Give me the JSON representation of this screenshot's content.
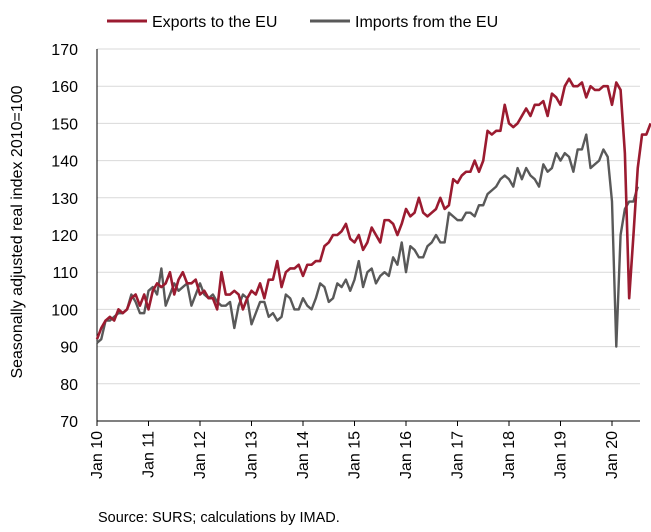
{
  "chart_data": {
    "type": "line",
    "ylabel": "Seasonally adjusted real index 2010=100",
    "ylim": [
      70,
      170
    ],
    "yticks": [
      70,
      80,
      90,
      100,
      110,
      120,
      130,
      140,
      150,
      160,
      170
    ],
    "xlabels": [
      "Jan 10",
      "Jan 11",
      "Jan 12",
      "Jan 13",
      "Jan 14",
      "Jan 15",
      "Jan 16",
      "Jan 17",
      "Jan 18",
      "Jan 19",
      "Jan 20"
    ],
    "grid": "horizontal",
    "legend_position": "top",
    "source": "Source: SURS; calculations by IMAD.",
    "series": [
      {
        "name": "Exports to the EU",
        "color": "#9B1B30",
        "values": [
          92,
          95,
          97,
          98,
          97,
          100,
          99,
          100,
          103,
          104,
          101,
          104,
          100,
          105,
          107,
          106,
          107,
          110,
          104,
          108,
          110,
          107,
          107,
          108,
          104,
          105,
          103,
          103,
          100,
          110,
          104,
          104,
          105,
          104,
          100,
          103,
          105,
          104,
          107,
          103,
          108,
          108,
          113,
          106,
          110,
          111,
          111,
          112,
          109,
          112,
          112,
          113,
          113,
          117,
          118,
          120,
          120,
          121,
          123,
          119,
          118,
          120,
          116,
          118,
          122,
          120,
          118,
          124,
          124,
          123,
          120,
          123,
          127,
          125,
          126,
          130,
          126,
          125,
          126,
          127,
          130,
          127,
          128,
          135,
          134,
          136,
          137,
          137,
          140,
          137,
          140,
          148,
          147,
          148,
          148,
          155,
          150,
          149,
          150,
          152,
          154,
          152,
          155,
          155,
          156,
          152,
          158,
          157,
          155,
          160,
          162,
          160,
          160,
          161,
          157,
          160,
          159,
          159,
          160,
          160,
          155,
          161,
          159,
          142,
          103,
          120,
          138,
          147,
          147,
          150
        ],
        "start_year": 2010,
        "start_month": 1
      },
      {
        "name": "Imports from the EU",
        "color": "#595959",
        "values": [
          91,
          92,
          97,
          97,
          98,
          99,
          99,
          100,
          104,
          102,
          99,
          99,
          105,
          106,
          104,
          111,
          101,
          104,
          107,
          105,
          106,
          107,
          101,
          104,
          107,
          104,
          103,
          104,
          102,
          101,
          101,
          102,
          95,
          101,
          104,
          103,
          96,
          99,
          102,
          102,
          98,
          99,
          97,
          98,
          104,
          103,
          100,
          100,
          103,
          101,
          100,
          103,
          107,
          106,
          102,
          103,
          107,
          106,
          108,
          105,
          108,
          113,
          106,
          110,
          111,
          107,
          109,
          110,
          109,
          114,
          112,
          118,
          110,
          117,
          116,
          114,
          114,
          117,
          118,
          120,
          118,
          118,
          126,
          125,
          124,
          124,
          126,
          126,
          125,
          128,
          128,
          131,
          132,
          133,
          135,
          136,
          135,
          133,
          138,
          135,
          138,
          136,
          135,
          133,
          139,
          137,
          138,
          142,
          140,
          142,
          141,
          137,
          143,
          143,
          147,
          138,
          139,
          140,
          143,
          141,
          129,
          90,
          120,
          127,
          129,
          129,
          133
        ],
        "start_year": 2010,
        "start_month": 1
      }
    ]
  }
}
